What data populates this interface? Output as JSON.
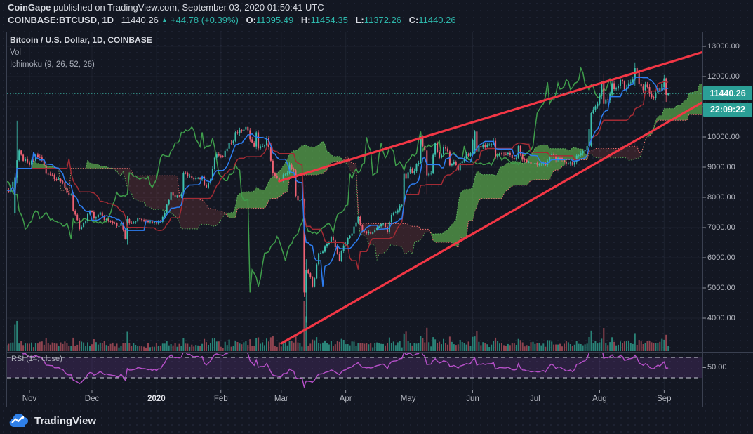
{
  "header": {
    "publisher": "CoinGape",
    "publish_info": " published on TradingView.com, September 03, 2020 01:50:41 UTC",
    "symbol": "COINBASE:BTCUSD, 1D",
    "last_price": "11440.26",
    "direction_arrow": "▲",
    "change": "+44.78 (+0.39%)",
    "ohlc": [
      {
        "label": "O:",
        "value": "11395.49"
      },
      {
        "label": "H:",
        "value": "11454.35"
      },
      {
        "label": "L:",
        "value": "11372.26"
      },
      {
        "label": "C:",
        "value": "11440.26"
      }
    ]
  },
  "legend": {
    "title": "Bitcoin / U.S. Dollar, 1D, COINBASE",
    "vol": "Vol",
    "ichimoku": "Ichimoku (9, 26, 52, 26)"
  },
  "price_label": {
    "value": "11440.26",
    "countdown": "22:09:22"
  },
  "rsi_pane": {
    "label": "RSI (14, close)",
    "tick": "50.00"
  },
  "footer": {
    "brand": "TradingView"
  },
  "colors": {
    "background": "#131722",
    "up": "#3ec1ae",
    "down": "#ee6173",
    "volume_up": "#2a8478",
    "volume_down": "#8f4450",
    "cloud_green": "rgba(94,176,78,0.68)",
    "cloud_red": "rgba(239,94,90,0.16)",
    "senkou_a": "#5cb85c",
    "senkou_b": "#ef7070",
    "tenkan": "#2d7df0",
    "kijun": "#a32b34",
    "chikou": "#3f9d4b",
    "trendline": "#f23645",
    "price_line": "#3ec1ae",
    "badge": "#2b9f96",
    "rsi": "#b750c9",
    "rsi_band": "rgba(167,80,210,0.16)",
    "rsi_dash": "#ccd0da",
    "grid": "rgba(170,185,230,0.07)",
    "axis_text": "#b2b5be",
    "border": "#3a4050"
  },
  "chart_data": {
    "type": "candlestick",
    "title": "Bitcoin / U.S. Dollar, 1D, COINBASE",
    "subtitle": "with Volume, Ichimoku (9, 26, 52, 26) cloud, RSI (14, close), rising wedge trendlines",
    "x_axis": {
      "day_zero_date": "2019-11-01",
      "day_min": -10.8,
      "day_max": 323.8,
      "months": [
        {
          "label": "Nov",
          "day": 0
        },
        {
          "label": "Dec",
          "day": 30
        },
        {
          "label": "2020",
          "day": 61,
          "bold": true
        },
        {
          "label": "Feb",
          "day": 92
        },
        {
          "label": "Mar",
          "day": 121
        },
        {
          "label": "Apr",
          "day": 152
        },
        {
          "label": "May",
          "day": 182
        },
        {
          "label": "Jun",
          "day": 213
        },
        {
          "label": "Jul",
          "day": 243
        },
        {
          "label": "Aug",
          "day": 274
        },
        {
          "label": "Sep",
          "day": 305
        }
      ]
    },
    "y_axis": {
      "top_price": 13465,
      "bottom_price": 2907,
      "price_ticks": [
        {
          "price": 13000,
          "label": "13000.00"
        },
        {
          "price": 12000,
          "label": "12000.00"
        },
        {
          "price": 11000,
          "label": ""
        },
        {
          "price": 10000,
          "label": "10000.00"
        },
        {
          "price": 9000,
          "label": "9000.00"
        },
        {
          "price": 8000,
          "label": "8000.00"
        },
        {
          "price": 7000,
          "label": "7000.00"
        },
        {
          "price": 6000,
          "label": "6000.00"
        },
        {
          "price": 5000,
          "label": "5000.00"
        },
        {
          "price": 4000,
          "label": "4000.00"
        }
      ]
    },
    "rsi_axis": {
      "top_value": 79.7,
      "bottom_value": 7.9,
      "bands": [
        70,
        30
      ],
      "tick_value": 50,
      "tick_label": "50.00"
    },
    "current_price": 11440.26,
    "indicators": {
      "ichimoku": {
        "conversion": 9,
        "base": 26,
        "lead2": 52,
        "displacement": 26
      },
      "rsi": {
        "length": 14,
        "source": "close"
      }
    },
    "trendlines": [
      {
        "name": "wedge-upper",
        "points_day_price": [
          [
            120,
            8535
          ],
          [
            325,
            12840
          ]
        ]
      },
      {
        "name": "wedge-lower",
        "points_day_price": [
          [
            121,
            3163
          ],
          [
            325,
            11210
          ]
        ]
      }
    ],
    "candles": [
      [
        -11,
        8250
      ],
      [
        -9,
        8300
      ],
      [
        -7,
        7480,
        8800,
        7380,
        8660
      ],
      [
        -6,
        8660,
        10540,
        8460,
        9230
      ],
      [
        -5,
        9550
      ],
      [
        -3,
        9210
      ],
      [
        -1,
        9150
      ],
      [
        1,
        9220
      ],
      [
        3,
        9410
      ],
      [
        5,
        9320
      ],
      [
        7,
        9060
      ],
      [
        8,
        8780
      ],
      [
        10,
        8750
      ],
      [
        13,
        8600
      ],
      [
        16,
        8500
      ],
      [
        18,
        8150
      ],
      [
        20,
        8100
      ],
      [
        21,
        7550
      ],
      [
        23,
        7250
      ],
      [
        24,
        6950
      ],
      [
        26,
        7150
      ],
      [
        28,
        7450
      ],
      [
        29,
        7550
      ],
      [
        31,
        7300
      ],
      [
        34,
        7500
      ],
      [
        36,
        7250
      ],
      [
        39,
        7200
      ],
      [
        42,
        7050
      ],
      [
        44,
        7150
      ],
      [
        46,
        6620
      ],
      [
        47,
        6620,
        7380,
        6430,
        7280
      ],
      [
        49,
        7150
      ],
      [
        52,
        7300
      ],
      [
        55,
        7240
      ],
      [
        58,
        7200
      ],
      [
        60,
        7200
      ],
      [
        62,
        7200
      ],
      [
        64,
        7350
      ],
      [
        66,
        7760
      ],
      [
        68,
        8160
      ],
      [
        70,
        8030
      ],
      [
        73,
        8110
      ],
      [
        74,
        8110,
        8850,
        8060,
        8810
      ],
      [
        77,
        8710
      ],
      [
        80,
        8640
      ],
      [
        83,
        8680
      ],
      [
        85,
        8330
      ],
      [
        87,
        8600
      ],
      [
        89,
        9310
      ],
      [
        91,
        9380
      ],
      [
        93,
        9340
      ],
      [
        95,
        9610
      ],
      [
        97,
        9800
      ],
      [
        99,
        10150
      ],
      [
        101,
        10230
      ],
      [
        104,
        10330
      ],
      [
        106,
        9920
      ],
      [
        108,
        9680
      ],
      [
        109,
        10150
      ],
      [
        110,
        9620
      ],
      [
        112,
        9690
      ],
      [
        114,
        9960
      ],
      [
        115,
        9650
      ],
      [
        117,
        8790
      ],
      [
        119,
        8650
      ],
      [
        121,
        8550
      ],
      [
        123,
        8760
      ],
      [
        125,
        9080
      ],
      [
        127,
        8900
      ],
      [
        128,
        8050
      ],
      [
        129,
        7900
      ],
      [
        131,
        7930
      ],
      [
        132,
        7930,
        7960,
        4700,
        4850
      ],
      [
        133,
        4850,
        5950,
        3850,
        5600
      ],
      [
        135,
        5350
      ],
      [
        136,
        5050
      ],
      [
        137,
        5320
      ],
      [
        139,
        6150
      ],
      [
        141,
        6200
      ],
      [
        143,
        6450
      ],
      [
        145,
        6700
      ],
      [
        147,
        6350
      ],
      [
        149,
        5900
      ],
      [
        151,
        6400
      ],
      [
        153,
        6650
      ],
      [
        155,
        6800
      ],
      [
        158,
        7350
      ],
      [
        160,
        6870
      ],
      [
        163,
        6850
      ],
      [
        165,
        6840
      ],
      [
        168,
        7040
      ],
      [
        170,
        7130
      ],
      [
        172,
        6840
      ],
      [
        174,
        7420
      ],
      [
        176,
        7500
      ],
      [
        179,
        7750
      ],
      [
        180,
        8780
      ],
      [
        181,
        8780,
        9450,
        8530,
        8620
      ],
      [
        183,
        8950
      ],
      [
        185,
        8880
      ],
      [
        187,
        9140
      ],
      [
        188,
        9990
      ],
      [
        190,
        9550
      ],
      [
        191,
        9550,
        9570,
        8110,
        8730
      ],
      [
        193,
        8810
      ],
      [
        195,
        9790
      ],
      [
        197,
        9310
      ],
      [
        199,
        9670
      ],
      [
        201,
        9520
      ],
      [
        202,
        9060
      ],
      [
        204,
        9180
      ],
      [
        206,
        8900
      ],
      [
        208,
        9200
      ],
      [
        210,
        9420
      ],
      [
        212,
        9460
      ],
      [
        214,
        9460,
        10230,
        9440,
        10180
      ],
      [
        215,
        10180,
        10380,
        9320,
        9520
      ],
      [
        217,
        9650
      ],
      [
        219,
        9670
      ],
      [
        221,
        9750
      ],
      [
        223,
        9870
      ],
      [
        224,
        9320
      ],
      [
        226,
        9460
      ],
      [
        228,
        9430
      ],
      [
        230,
        9470
      ],
      [
        232,
        9300
      ],
      [
        234,
        9310
      ],
      [
        235,
        9700
      ],
      [
        237,
        9250
      ],
      [
        239,
        9170
      ],
      [
        241,
        9100
      ],
      [
        243,
        9140
      ],
      [
        245,
        9090
      ],
      [
        248,
        9070
      ],
      [
        251,
        9440
      ],
      [
        253,
        9230
      ],
      [
        256,
        9240
      ],
      [
        259,
        9130
      ],
      [
        262,
        9160
      ],
      [
        264,
        9390
      ],
      [
        266,
        9530
      ],
      [
        268,
        9700
      ],
      [
        270,
        9700,
        10830,
        9660,
        10790
      ],
      [
        271,
        10910
      ],
      [
        273,
        11100
      ],
      [
        274,
        11350
      ],
      [
        275,
        11350,
        11860,
        11250,
        11810
      ],
      [
        276,
        11810,
        12100,
        10570,
        11100
      ],
      [
        278,
        11220
      ],
      [
        280,
        11780
      ],
      [
        282,
        11600
      ],
      [
        284,
        11890
      ],
      [
        286,
        11570
      ],
      [
        288,
        11780
      ],
      [
        290,
        11900
      ],
      [
        291,
        11900,
        12470,
        11700,
        12280
      ],
      [
        293,
        11750
      ],
      [
        295,
        11550
      ],
      [
        297,
        11650
      ],
      [
        299,
        11320
      ],
      [
        301,
        11460
      ],
      [
        303,
        11530
      ],
      [
        305,
        11650,
        12050,
        11550,
        11940
      ],
      [
        306,
        11940,
        11960,
        11160,
        11400
      ],
      [
        307,
        11395,
        11454,
        11372,
        11440
      ]
    ]
  }
}
